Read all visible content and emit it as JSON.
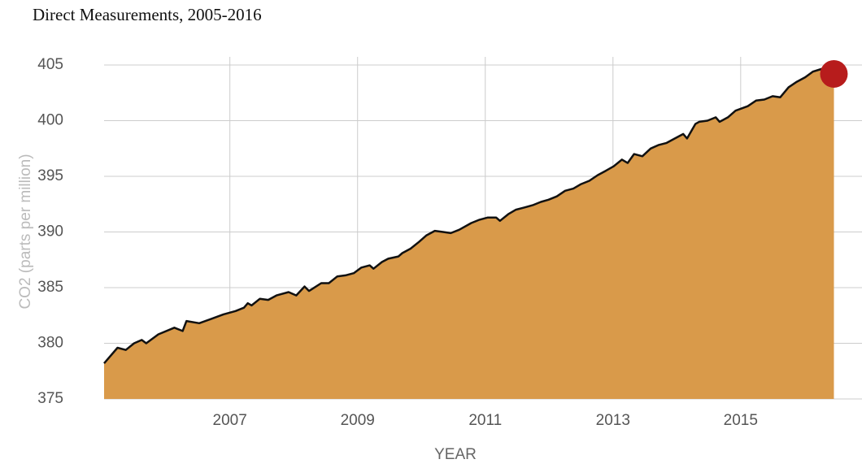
{
  "chart_data": {
    "type": "area",
    "title": "Direct Measurements, 2005-2016",
    "x_label": "YEAR",
    "y_label": "CO2 (parts per million)",
    "fill_color": "#d99a4a",
    "line_color": "#111111",
    "highlight_color": "#b71c1c",
    "grid": true,
    "xlim": [
      2005.03,
      2016.9
    ],
    "ylim": [
      375,
      405
    ],
    "xticks": [
      2007,
      2009,
      2011,
      2013,
      2015
    ],
    "yticks": [
      375,
      380,
      385,
      390,
      395,
      400,
      405
    ],
    "x": [
      2005.03,
      2005.24,
      2005.37,
      2005.5,
      2005.62,
      2005.69,
      2005.88,
      2006.13,
      2006.26,
      2006.32,
      2006.52,
      2006.71,
      2006.9,
      2007.09,
      2007.22,
      2007.28,
      2007.34,
      2007.47,
      2007.6,
      2007.73,
      2007.92,
      2008.04,
      2008.17,
      2008.24,
      2008.43,
      2008.55,
      2008.68,
      2008.81,
      2008.94,
      2009.06,
      2009.19,
      2009.25,
      2009.38,
      2009.48,
      2009.64,
      2009.7,
      2009.83,
      2009.96,
      2010.08,
      2010.21,
      2010.34,
      2010.46,
      2010.59,
      2010.78,
      2010.91,
      2011.04,
      2011.17,
      2011.23,
      2011.36,
      2011.48,
      2011.61,
      2011.74,
      2011.87,
      2011.99,
      2012.12,
      2012.25,
      2012.38,
      2012.5,
      2012.63,
      2012.76,
      2012.89,
      2013.01,
      2013.14,
      2013.23,
      2013.33,
      2013.46,
      2013.59,
      2013.71,
      2013.84,
      2013.97,
      2014.1,
      2014.16,
      2014.29,
      2014.35,
      2014.48,
      2014.61,
      2014.67,
      2014.8,
      2014.92,
      2015.11,
      2015.24,
      2015.37,
      2015.5,
      2015.62,
      2015.75,
      2015.88,
      2016.01,
      2016.13,
      2016.24,
      2016.3,
      2016.46
    ],
    "values": [
      378.2,
      379.6,
      379.4,
      380.0,
      380.3,
      380.0,
      380.8,
      381.4,
      381.1,
      382.0,
      381.8,
      382.2,
      382.6,
      382.9,
      383.2,
      383.6,
      383.4,
      384.0,
      383.9,
      384.3,
      384.6,
      384.3,
      385.1,
      384.7,
      385.4,
      385.4,
      386.0,
      386.1,
      386.3,
      386.8,
      387.0,
      386.7,
      387.3,
      387.6,
      387.8,
      388.1,
      388.5,
      389.1,
      389.7,
      390.1,
      390.0,
      389.9,
      390.2,
      390.8,
      391.1,
      391.3,
      391.3,
      391.0,
      391.6,
      392.0,
      392.2,
      392.4,
      392.7,
      392.9,
      393.2,
      393.7,
      393.9,
      394.3,
      394.6,
      395.1,
      395.5,
      395.9,
      396.5,
      396.2,
      397.0,
      396.8,
      397.5,
      397.8,
      398.0,
      398.4,
      398.8,
      398.4,
      399.7,
      399.9,
      400.0,
      400.3,
      399.9,
      400.3,
      400.9,
      401.3,
      401.8,
      401.9,
      402.2,
      402.1,
      403.0,
      403.5,
      403.9,
      404.4,
      404.6,
      404.7,
      404.2
    ]
  }
}
